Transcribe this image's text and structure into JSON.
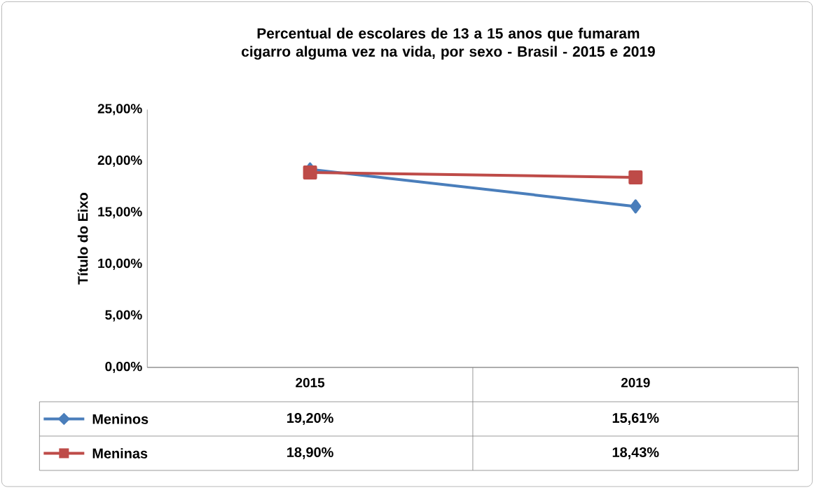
{
  "chart_data": {
    "type": "line",
    "title": "Percentual de escolares de 13 a 15 anos que fumaram cigarro alguma vez na vida, por sexo - Brasil - 2015 e 2019",
    "ylabel": "Título do Eixo",
    "categories": [
      "2015",
      "2019"
    ],
    "series": [
      {
        "name": "Meninos",
        "color": "#4a7ebb",
        "values": [
          19.2,
          15.61
        ],
        "marker": "diamond",
        "value_labels": [
          "19,20%",
          "15,61%"
        ]
      },
      {
        "name": "Meninas",
        "color": "#be4b48",
        "values": [
          18.9,
          18.43
        ],
        "marker": "square",
        "value_labels": [
          "18,90%",
          "18,43%"
        ]
      }
    ],
    "ylim": [
      0,
      25
    ],
    "yticks": [
      {
        "value": 0,
        "label": "0,00%"
      },
      {
        "value": 5,
        "label": "5,00%"
      },
      {
        "value": 10,
        "label": "10,00%"
      },
      {
        "value": 15,
        "label": "15,00%"
      },
      {
        "value": 20,
        "label": "20,00%"
      },
      {
        "value": 25,
        "label": "25,00%"
      }
    ],
    "legend": "bottom",
    "line_style": "solid",
    "data_labels": true
  }
}
